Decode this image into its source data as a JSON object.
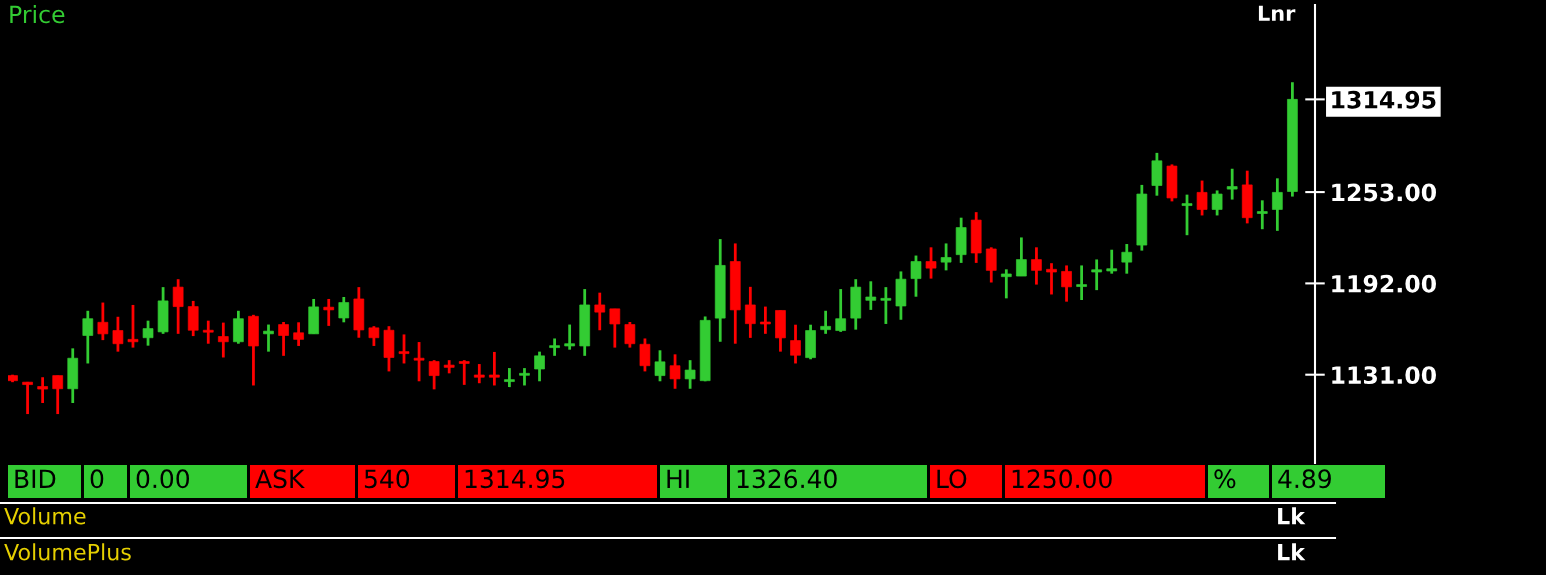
{
  "chart_data": {
    "type": "candlestick",
    "title": "Price",
    "categories": [
      null,
      null,
      null,
      null,
      null,
      null,
      null,
      null,
      null,
      null,
      null,
      null,
      null,
      null,
      null,
      null,
      null,
      null,
      null,
      null,
      null,
      null,
      null,
      null,
      null,
      null,
      null,
      null,
      null,
      null,
      null,
      null,
      null,
      null,
      null,
      null,
      null,
      null,
      null,
      null,
      null,
      null,
      null,
      null,
      null,
      null,
      null,
      null,
      null,
      null,
      null,
      null,
      null,
      null,
      null,
      null,
      null,
      null,
      null,
      null,
      null,
      null,
      null,
      null,
      null,
      null,
      null,
      null,
      null,
      null,
      null,
      null,
      null,
      null,
      null,
      null,
      null,
      null,
      null,
      null,
      null,
      null,
      null,
      null,
      null,
      null
    ],
    "ohlc": [
      [
        1130.4,
        1131,
        1126,
        1127
      ],
      [
        1126.0,
        1126.2,
        1104.7,
        1124.4
      ],
      [
        1123.1,
        1129.3,
        1112.1,
        1121.4
      ],
      [
        1130.4,
        1130.4,
        1104.7,
        1121.6
      ],
      [
        1121.6,
        1148.6,
        1112.1,
        1142.0
      ],
      [
        1157.2,
        1173.7,
        1138.5,
        1168.4
      ],
      [
        1166.0,
        1179.2,
        1154.1,
        1158.3
      ],
      [
        1160.5,
        1169.7,
        1146.4,
        1151.7
      ],
      [
        1154.6,
        1177.6,
        1149.1,
        1153.0
      ],
      [
        1155.7,
        1167.1,
        1150.4,
        1161.8
      ],
      [
        1159.6,
        1189.5,
        1158.3,
        1180.3
      ],
      [
        1189.5,
        1194.8,
        1158.3,
        1176.5
      ],
      [
        1176.5,
        1180.3,
        1156.8,
        1160.7
      ],
      [
        1160.7,
        1167.1,
        1151.7,
        1159.4
      ],
      [
        1156.5,
        1165.8,
        1142.5,
        1153.0
      ],
      [
        1153.0,
        1173.7,
        1151.7,
        1168.4
      ],
      [
        1170.0,
        1171.0,
        1123.8,
        1150.2
      ],
      [
        1158.3,
        1164.5,
        1146.4,
        1160.1
      ],
      [
        1164.5,
        1166.2,
        1143.6,
        1157.2
      ],
      [
        1159.0,
        1166.0,
        1150.2,
        1154.6
      ],
      [
        1158.3,
        1181.6,
        1158.3,
        1176.3
      ],
      [
        1176.1,
        1181.6,
        1163.6,
        1174.3
      ],
      [
        1168.9,
        1182.9,
        1166.0,
        1179.2
      ],
      [
        1181.6,
        1189.5,
        1155.7,
        1160.9
      ],
      [
        1162.3,
        1163.4,
        1150.2,
        1155.7
      ],
      [
        1160.7,
        1163.4,
        1133.2,
        1142.5
      ],
      [
        1146.4,
        1157.9,
        1138.5,
        1145.1
      ],
      [
        1142.0,
        1152.8,
        1126.6,
        1140.7
      ],
      [
        1139.8,
        1140.7,
        1121.2,
        1130.4
      ],
      [
        1137.4,
        1140.7,
        1131.9,
        1135.9
      ],
      [
        1139.8,
        1140.7,
        1124.2,
        1138.5
      ],
      [
        1130.8,
        1138.1,
        1125.3,
        1129.3
      ],
      [
        1130.8,
        1146.2,
        1123.8,
        1129.3
      ],
      [
        1126.4,
        1135.4,
        1122.7,
        1127.7
      ],
      [
        1130.6,
        1135.4,
        1123.8,
        1131.9
      ],
      [
        1134.8,
        1146.4,
        1126.6,
        1143.6
      ],
      [
        1149.1,
        1155.2,
        1143.6,
        1150.4
      ],
      [
        1150.2,
        1164.5,
        1147.7,
        1151.7
      ],
      [
        1150.2,
        1188.2,
        1143.6,
        1177.6
      ],
      [
        1177.6,
        1185.8,
        1160.7,
        1172.8
      ],
      [
        1175.0,
        1175.0,
        1149.1,
        1164.9
      ],
      [
        1164.5,
        1166.2,
        1149.1,
        1151.7
      ],
      [
        1151.3,
        1155.2,
        1133.2,
        1137.0
      ],
      [
        1130.4,
        1147.3,
        1126.6,
        1139.6
      ],
      [
        1137.0,
        1144.6,
        1121.6,
        1128.2
      ],
      [
        1128.2,
        1140.7,
        1121.6,
        1134.1
      ],
      [
        1127.0,
        1169.9,
        1126.6,
        1167.3
      ],
      [
        1168.8,
        1221.6,
        1153.0,
        1204.0
      ],
      [
        1206.6,
        1218.7,
        1151.7,
        1174.3
      ],
      [
        1177.6,
        1189.7,
        1155.6,
        1165.1
      ],
      [
        1166.2,
        1176.5,
        1158.3,
        1164.9
      ],
      [
        1173.9,
        1173.9,
        1146.4,
        1155.6
      ],
      [
        1153.8,
        1164.4,
        1138.5,
        1144.0
      ],
      [
        1142.4,
        1164.4,
        1141.3,
        1160.5
      ],
      [
        1161.1,
        1173.7,
        1158.3,
        1163.3
      ],
      [
        1160.5,
        1188.2,
        1159.6,
        1168.4
      ],
      [
        1168.8,
        1194.8,
        1161.1,
        1189.5
      ],
      [
        1180.7,
        1193.4,
        1174.3,
        1182.9
      ],
      [
        1180.7,
        1189.5,
        1164.9,
        1182.0
      ],
      [
        1176.9,
        1200.0,
        1167.7,
        1194.8
      ],
      [
        1195.2,
        1210.6,
        1183.1,
        1206.6
      ],
      [
        1206.6,
        1216.1,
        1195.2,
        1202.2
      ],
      [
        1206.2,
        1218.7,
        1200.7,
        1209.3
      ],
      [
        1211.2,
        1235.9,
        1205.7,
        1229.3
      ],
      [
        1234.3,
        1239.6,
        1205.7,
        1212.3
      ],
      [
        1215.0,
        1216.1,
        1192.6,
        1200.7
      ],
      [
        1196.5,
        1201.4,
        1182.0,
        1198.3
      ],
      [
        1196.9,
        1222.7,
        1196.9,
        1207.9
      ],
      [
        1207.9,
        1216.1,
        1191.2,
        1200.7
      ],
      [
        1201.4,
        1205.5,
        1184.6,
        1199.6
      ],
      [
        1200.0,
        1204.0,
        1179.8,
        1189.7
      ],
      [
        1189.9,
        1204.0,
        1180.9,
        1191.2
      ],
      [
        1199.6,
        1208.0,
        1187.5,
        1201.1
      ],
      [
        1200.3,
        1214.5,
        1198.5,
        1201.8
      ],
      [
        1206.2,
        1218.3,
        1198.5,
        1212.8
      ],
      [
        1217.6,
        1257.8,
        1213.9,
        1251.7
      ],
      [
        1257.4,
        1279.2,
        1250.6,
        1273.9
      ],
      [
        1270.4,
        1271.5,
        1246.8,
        1249.1
      ],
      [
        1244.0,
        1251.3,
        1224.2,
        1245.3
      ],
      [
        1252.8,
        1260.7,
        1237.4,
        1241.4
      ],
      [
        1241.4,
        1254.1,
        1237.4,
        1251.7
      ],
      [
        1255.0,
        1268.6,
        1248.0,
        1256.7
      ],
      [
        1257.8,
        1267.3,
        1232.1,
        1235.9
      ],
      [
        1238.7,
        1247.5,
        1228.2,
        1240.0
      ],
      [
        1241.4,
        1262.2,
        1227.1,
        1252.8
      ],
      [
        1253.4,
        1326.4,
        1250.0,
        1314.95
      ]
    ],
    "colors": [
      "#ff0000",
      "#ff0000",
      "#ff0000",
      "#ff0000",
      "#33cc33",
      "#33cc33",
      "#ff0000",
      "#ff0000",
      "#ff0000",
      "#33cc33",
      "#33cc33",
      "#ff0000",
      "#ff0000",
      "#ff0000",
      "#ff0000",
      "#33cc33",
      "#ff0000",
      "#33cc33",
      "#ff0000",
      "#ff0000",
      "#33cc33",
      "#ff0000",
      "#33cc33",
      "#ff0000",
      "#ff0000",
      "#ff0000",
      "#ff0000",
      "#ff0000",
      "#ff0000",
      "#ff0000",
      "#ff0000",
      "#ff0000",
      "#ff0000",
      "#33cc33",
      "#33cc33",
      "#33cc33",
      "#33cc33",
      "#33cc33",
      "#33cc33",
      "#ff0000",
      "#ff0000",
      "#ff0000",
      "#ff0000",
      "#33cc33",
      "#ff0000",
      "#33cc33",
      "#33cc33",
      "#33cc33",
      "#ff0000",
      "#ff0000",
      "#ff0000",
      "#ff0000",
      "#ff0000",
      "#33cc33",
      "#33cc33",
      "#33cc33",
      "#33cc33",
      "#33cc33",
      "#33cc33",
      "#33cc33",
      "#33cc33",
      "#ff0000",
      "#33cc33",
      "#33cc33",
      "#ff0000",
      "#ff0000",
      "#33cc33",
      "#33cc33",
      "#ff0000",
      "#ff0000",
      "#ff0000",
      "#33cc33",
      "#33cc33",
      "#33cc33",
      "#33cc33",
      "#33cc33",
      "#33cc33",
      "#ff0000",
      "#33cc33",
      "#ff0000",
      "#33cc33",
      "#33cc33",
      "#ff0000",
      "#33cc33",
      "#33cc33",
      "#33cc33"
    ],
    "ylim": [
      1072,
      1378
    ],
    "yticks": [
      {
        "value": 1131,
        "label": "1131.00"
      },
      {
        "value": 1192,
        "label": "1192.00"
      },
      {
        "value": 1253,
        "label": "1253.00"
      },
      {
        "value": 1314.95,
        "label": "1314.95"
      }
    ],
    "tick_labels": "y",
    "grid": false,
    "legend": false,
    "annotations": [
      "Lnr",
      "BID",
      "0",
      "0.00",
      "ASK",
      "540",
      "1314.95",
      "HI",
      "1326.40",
      "LO",
      "1250.00",
      "%",
      "4.89",
      "Volume",
      "Lk",
      "VolumePlus",
      "Lk"
    ]
  }
}
